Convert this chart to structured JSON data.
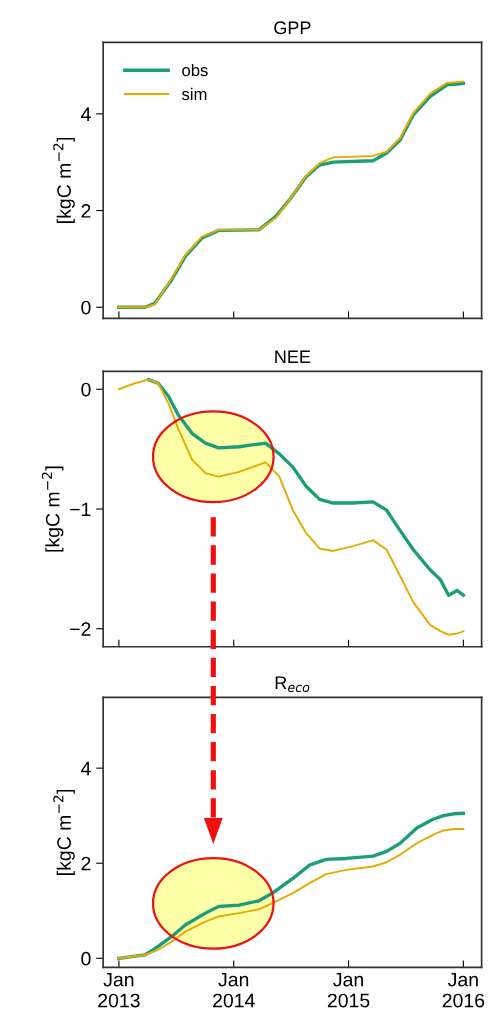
{
  "chart_data": [
    {
      "type": "line",
      "title": "GPP",
      "ylabel": "[kgC m$^{−2}$]",
      "x": [
        "2013-01-01",
        "2013-03-25",
        "2013-04-25",
        "2013-06-18",
        "2013-07-31",
        "2013-09-22",
        "2013-11-14",
        "2014-03-22",
        "2014-05-15",
        "2014-06-27",
        "2014-08-19",
        "2014-10-01",
        "2014-11-13",
        "2015-03-20",
        "2015-05-02",
        "2015-06-14",
        "2015-07-26",
        "2015-09-18",
        "2015-11-10",
        "2016-01-01"
      ],
      "series": [
        {
          "name": "obs",
          "color": "#1b9e77",
          "values": [
            0,
            0,
            0.08,
            0.57,
            1.05,
            1.43,
            1.59,
            1.6,
            1.88,
            2.22,
            2.7,
            2.94,
            3.0,
            3.03,
            3.19,
            3.46,
            3.98,
            4.36,
            4.6,
            4.63
          ]
        },
        {
          "name": "sim",
          "color": "#e6ab02",
          "values": [
            0,
            0,
            0.06,
            0.6,
            1.08,
            1.46,
            1.6,
            1.6,
            1.85,
            2.22,
            2.72,
            2.98,
            3.1,
            3.13,
            3.22,
            3.5,
            4.02,
            4.42,
            4.64,
            4.67
          ]
        }
      ],
      "xlim": [
        "2012-11-12",
        "2016-02-28"
      ],
      "ylim": [
        -0.23,
        5.48
      ],
      "yticks": [
        0,
        2,
        4
      ],
      "xticks": [
        {
          "value": "2013-01-01",
          "label": null
        },
        {
          "value": "2014-01-01",
          "label": null
        },
        {
          "value": "2015-01-01",
          "label": null
        },
        {
          "value": "2016-01-01",
          "label": null
        }
      ],
      "tick_labels": "y",
      "legend": "top left"
    },
    {
      "type": "line",
      "title": "NEE",
      "ylabel": "[kgC m$^{−2}$]",
      "x": [
        "2013-01-01",
        "2013-02-21",
        "2013-04-05",
        "2013-05-06",
        "2013-06-08",
        "2013-07-10",
        "2013-08-22",
        "2013-10-03",
        "2013-11-14",
        "2014-01-18",
        "2014-04-12",
        "2014-05-26",
        "2014-07-08",
        "2014-08-19",
        "2014-10-01",
        "2014-11-13",
        "2015-01-16",
        "2015-03-20",
        "2015-05-02",
        "2015-06-14",
        "2015-07-26",
        "2015-09-18",
        "2015-10-20",
        "2015-11-15",
        "2015-12-12",
        "2016-01-01"
      ],
      "series": [
        {
          "color": "#1b9e77",
          "values": [
            null,
            null,
            0.08,
            0.05,
            -0.06,
            -0.22,
            -0.37,
            -0.45,
            -0.49,
            -0.48,
            -0.45,
            -0.54,
            -0.65,
            -0.81,
            -0.92,
            -0.95,
            -0.95,
            -0.94,
            -1.01,
            -1.18,
            -1.34,
            -1.51,
            -1.59,
            -1.72,
            -1.68,
            -1.72
          ]
        },
        {
          "color": "#e6ab02",
          "values": [
            0,
            0.05,
            0.08,
            0.05,
            -0.12,
            -0.34,
            -0.59,
            -0.7,
            -0.73,
            -0.69,
            -0.61,
            -0.73,
            -1.01,
            -1.2,
            -1.33,
            -1.35,
            -1.31,
            -1.26,
            -1.34,
            -1.56,
            -1.78,
            -1.97,
            -2.02,
            -2.05,
            -2.04,
            -2.02
          ]
        }
      ],
      "xlim": [
        "2012-11-12",
        "2016-02-28"
      ],
      "ylim": [
        -2.15,
        0.15
      ],
      "yticks": [
        -2,
        -1,
        0
      ],
      "xticks": [
        {
          "value": "2013-01-01",
          "label": null
        },
        {
          "value": "2014-01-01",
          "label": null
        },
        {
          "value": "2015-01-01",
          "label": null
        },
        {
          "value": "2016-01-01",
          "label": null
        }
      ],
      "tick_labels": "y"
    },
    {
      "type": "line",
      "title": "R$_{eco}$",
      "ylabel": "[kgC m$^{−2}$]",
      "x": [
        "2013-01-01",
        "2013-03-25",
        "2013-05-06",
        "2013-06-18",
        "2013-07-31",
        "2013-10-03",
        "2013-11-14",
        "2014-01-18",
        "2014-03-22",
        "2014-05-04",
        "2014-07-08",
        "2014-08-30",
        "2014-10-22",
        "2014-12-25",
        "2015-03-20",
        "2015-05-02",
        "2015-06-14",
        "2015-08-06",
        "2015-09-28",
        "2015-10-30",
        "2015-12-01",
        "2016-01-01"
      ],
      "series": [
        {
          "color": "#1b9e77",
          "values": [
            0,
            0.07,
            0.25,
            0.46,
            0.7,
            0.95,
            1.09,
            1.12,
            1.21,
            1.37,
            1.68,
            1.96,
            2.08,
            2.1,
            2.15,
            2.25,
            2.42,
            2.74,
            2.93,
            3.0,
            3.04,
            3.05
          ]
        },
        {
          "color": "#e6ab02",
          "values": [
            0,
            0.07,
            0.18,
            0.35,
            0.56,
            0.77,
            0.88,
            0.95,
            1.03,
            1.16,
            1.37,
            1.58,
            1.77,
            1.86,
            1.93,
            2.02,
            2.18,
            2.42,
            2.6,
            2.69,
            2.72,
            2.72
          ]
        }
      ],
      "xlim": [
        "2012-11-12",
        "2016-02-28"
      ],
      "ylim": [
        -0.19,
        5.49
      ],
      "yticks": [
        0,
        2,
        4
      ],
      "xticks": [
        {
          "value": "2013-01-01",
          "label": "Jan\n2013"
        },
        {
          "value": "2014-01-01",
          "label": "Jan\n2014"
        },
        {
          "value": "2015-01-01",
          "label": "Jan\n2015"
        },
        {
          "value": "2016-01-01",
          "label": "Jan\n2016"
        }
      ]
    }
  ]
}
